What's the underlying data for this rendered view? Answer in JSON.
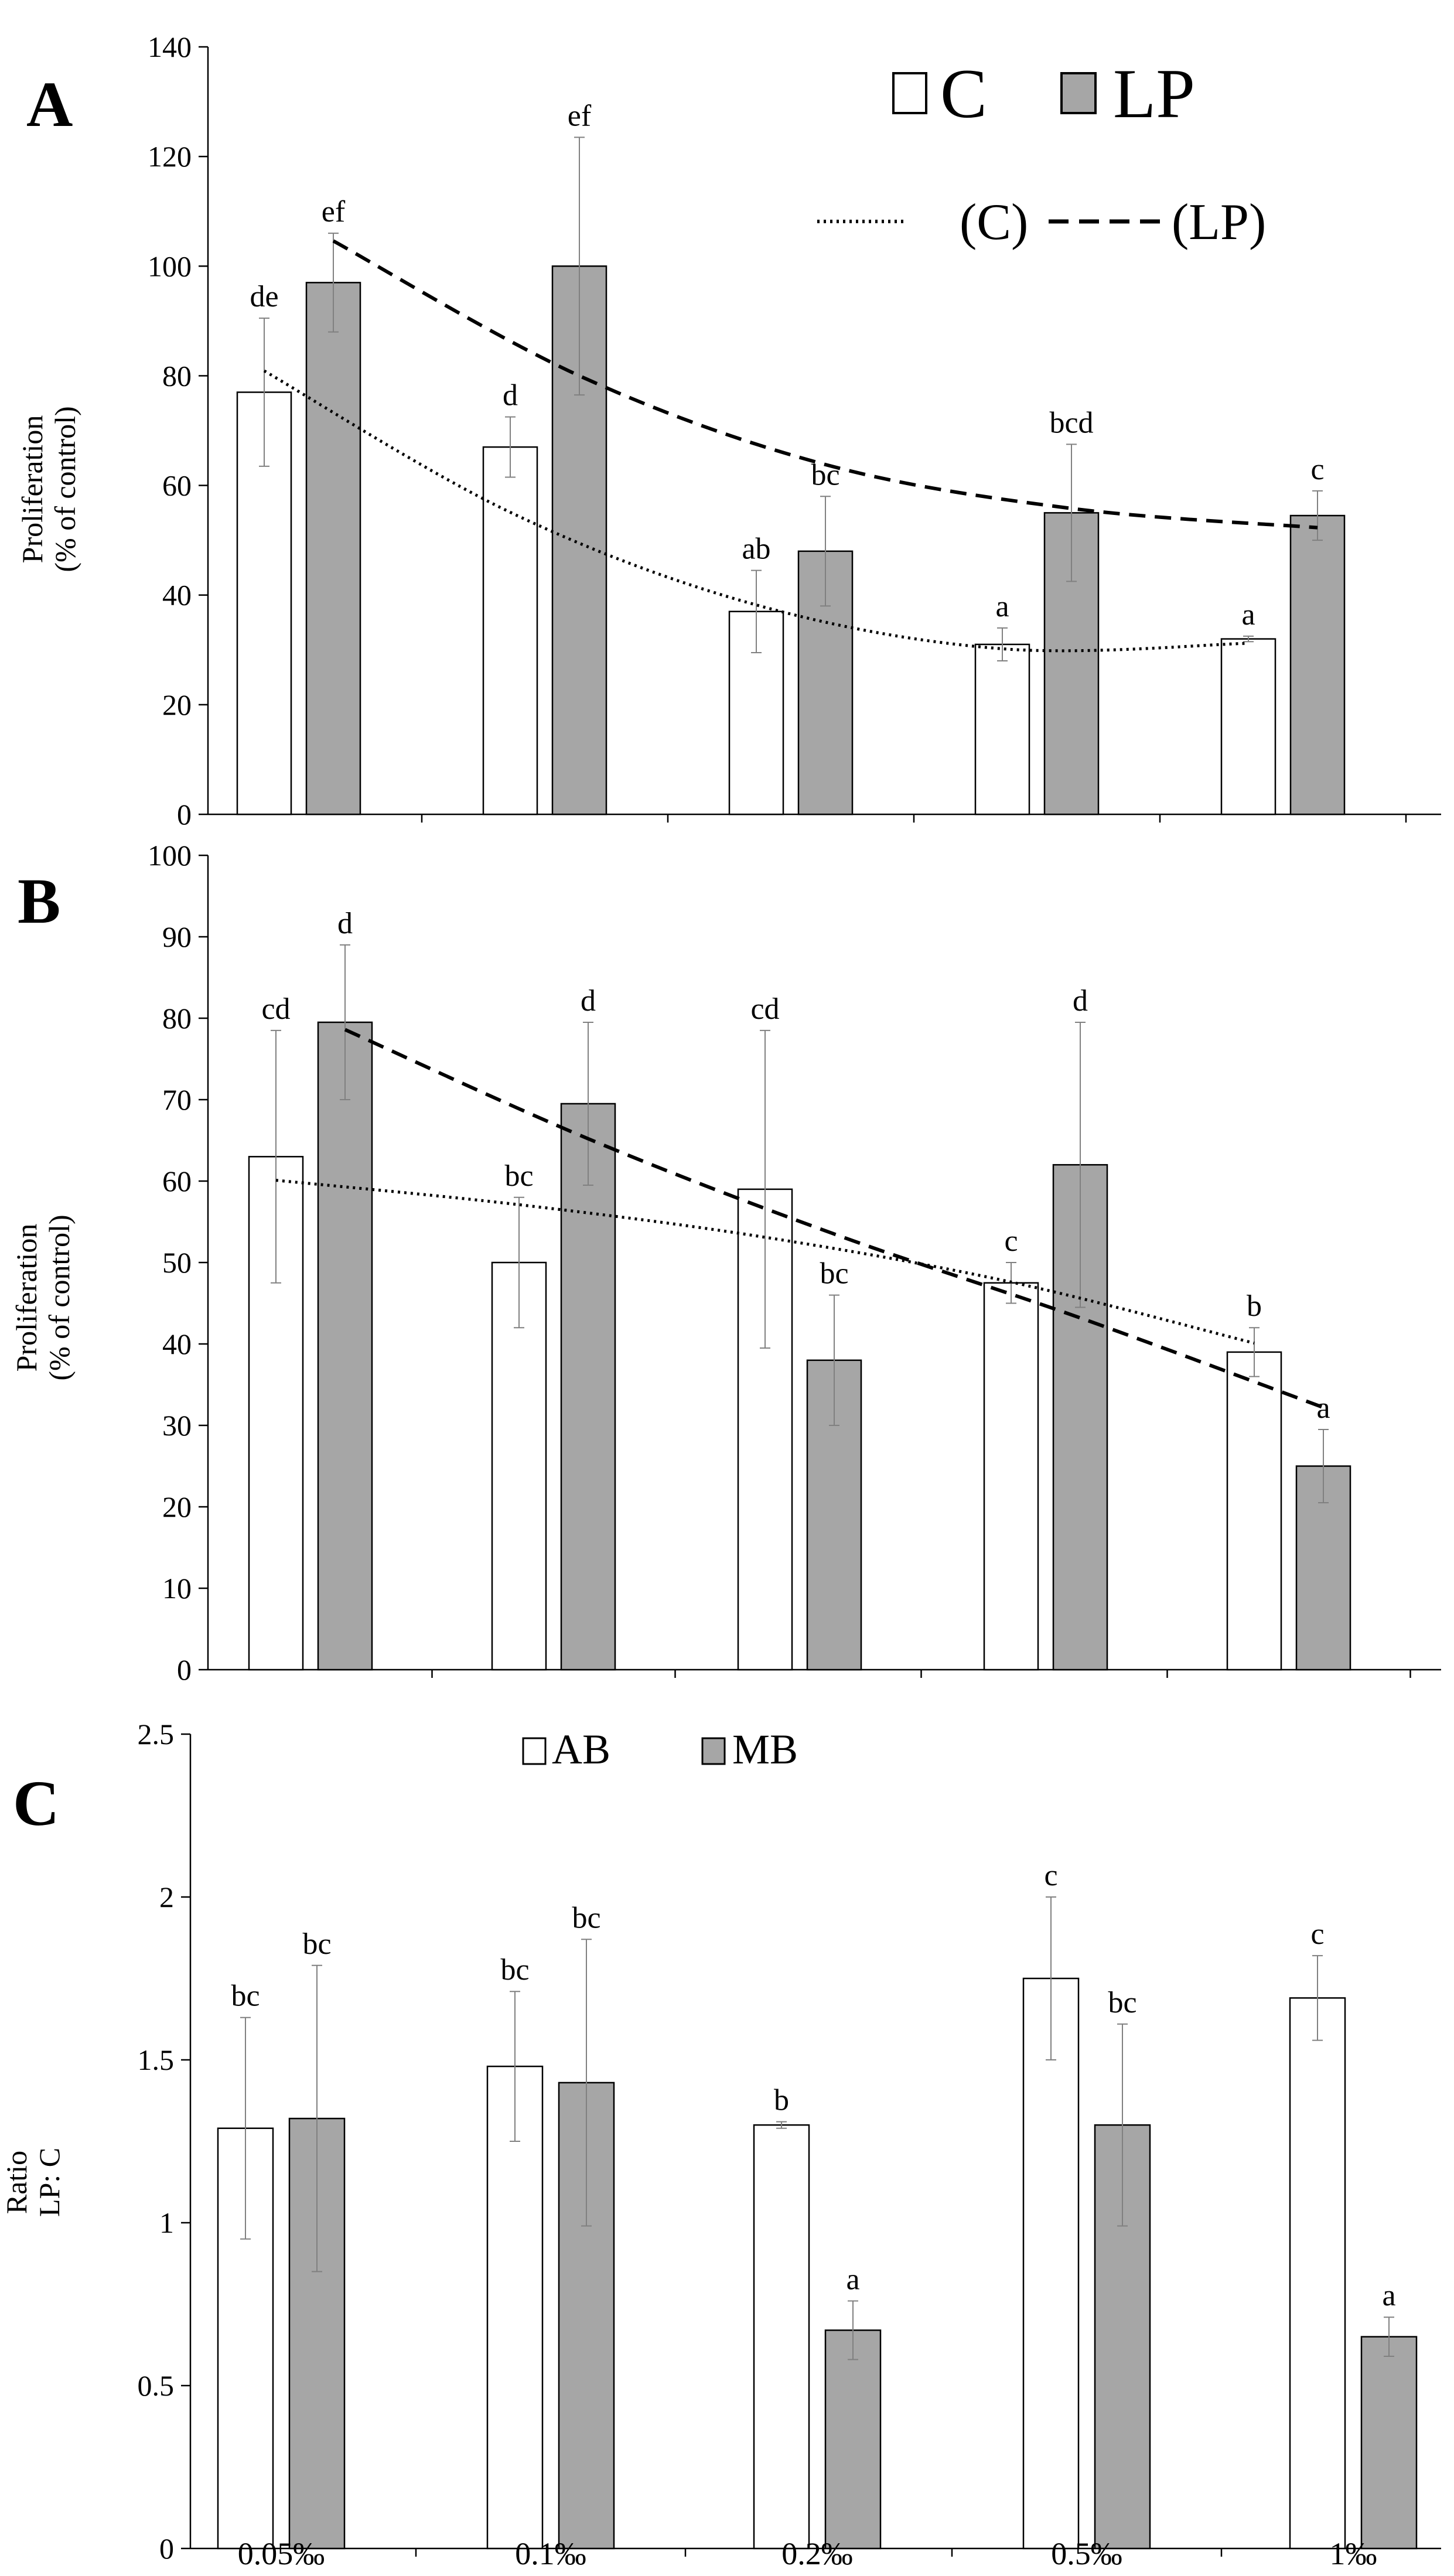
{
  "chart_data": [
    {
      "panel": "A",
      "type": "bar",
      "categories": [
        "0.05‰",
        "0.1‰",
        "0.2‰",
        "0.5‰",
        "1‰"
      ],
      "ylabel": "Proliferation\n(% of control)",
      "ylim": [
        0,
        140
      ],
      "yticks": [
        0,
        20,
        40,
        60,
        80,
        100,
        120,
        140
      ],
      "legend": {
        "series": [
          "C",
          "LP"
        ],
        "trendlines": [
          "(C)",
          "(LP)"
        ],
        "position": "top-right"
      },
      "series": [
        {
          "name": "C",
          "values": [
            77,
            67,
            37,
            31,
            32
          ],
          "errors": [
            13.5,
            5.5,
            7.5,
            3,
            0.5
          ],
          "labels": [
            "de",
            "d",
            "ab",
            "a",
            "a"
          ]
        },
        {
          "name": "LP",
          "values": [
            97,
            100,
            48,
            55,
            54.5
          ],
          "errors": [
            9,
            23.5,
            10,
            12.5,
            4.5
          ],
          "labels": [
            "ef",
            "ef",
            "bc",
            "bcd",
            "c"
          ]
        }
      ],
      "trendlines": [
        {
          "name": "(C)",
          "style": "dotted",
          "values": [
            80.9,
            55.1,
            38.2,
            30.2,
            31.2
          ]
        },
        {
          "name": "(LP)",
          "style": "dashed",
          "values": [
            104.6,
            80.0,
            63.8,
            55.8,
            52.3
          ]
        }
      ]
    },
    {
      "panel": "B",
      "type": "bar",
      "categories": [
        "0.05‰",
        "0.1‰",
        "0.2‰",
        "0.5‰",
        "1‰"
      ],
      "ylabel": "Proliferation\n(% of control)",
      "ylim": [
        0,
        100
      ],
      "yticks": [
        0,
        10,
        20,
        30,
        40,
        50,
        60,
        70,
        80,
        90,
        100
      ],
      "series": [
        {
          "name": "C",
          "values": [
            63,
            50,
            59,
            47.5,
            39
          ],
          "errors": [
            15.5,
            8,
            19.5,
            2.5,
            3
          ],
          "labels": [
            "cd",
            "bc",
            "cd",
            "c",
            "b"
          ]
        },
        {
          "name": "LP",
          "values": [
            79.5,
            69.5,
            38,
            62,
            25
          ],
          "errors": [
            9.5,
            10,
            8,
            17.5,
            4.5
          ],
          "labels": [
            "d",
            "d",
            "bc",
            "d",
            "a"
          ]
        }
      ],
      "trendlines": [
        {
          "name": "(C)",
          "style": "dotted",
          "values": [
            60.1,
            57.1,
            53.1,
            47.6,
            40.1
          ]
        },
        {
          "name": "(LP)",
          "style": "dashed",
          "values": [
            78.6,
            65.2,
            53.5,
            43.2,
            32.2
          ]
        }
      ]
    },
    {
      "panel": "C",
      "type": "bar",
      "categories": [
        "0.05‰",
        "0.1‰",
        "0.2‰",
        "0.5‰",
        "1‰"
      ],
      "ylabel": "Ratio\nLP: C",
      "ylim": [
        0,
        2.5
      ],
      "yticks": [
        "0",
        "0.5",
        "1",
        "1.5",
        "2",
        "2.5"
      ],
      "legend": {
        "series": [
          "AB",
          "MB"
        ],
        "position": "top"
      },
      "series": [
        {
          "name": "AB",
          "values": [
            1.29,
            1.48,
            1.3,
            1.75,
            1.69
          ],
          "errors": [
            0.34,
            0.23,
            0.01,
            0.25,
            0.13
          ],
          "labels": [
            "bc",
            "bc",
            "b",
            "c",
            "c"
          ]
        },
        {
          "name": "MB",
          "values": [
            1.32,
            1.43,
            0.67,
            1.3,
            0.65
          ],
          "errors": [
            0.47,
            0.44,
            0.09,
            0.31,
            0.06
          ],
          "labels": [
            "bc",
            "bc",
            "a",
            "bc",
            "a"
          ]
        }
      ]
    }
  ]
}
